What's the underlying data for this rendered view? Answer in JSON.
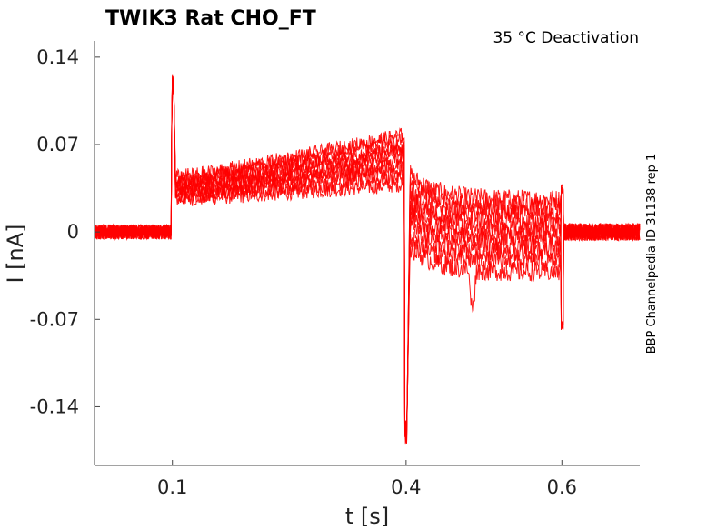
{
  "chart_data": {
    "type": "line",
    "title": "TWIK3  Rat  CHO_FT",
    "annotation": "35 °C  Deactivation",
    "side_label": "BBP Channelpedia ID 31138 rep 1",
    "xlabel": "t [s]",
    "ylabel": "I [nA]",
    "xlim": [
      0,
      0.7
    ],
    "ylim": [
      -0.187,
      0.153
    ],
    "x_ticks": [
      0.1,
      0.4,
      0.6
    ],
    "x_tick_labels": [
      "0.1",
      "0.4",
      "0.6"
    ],
    "y_ticks": [
      0.14,
      0.07,
      0,
      -0.07,
      -0.14
    ],
    "y_tick_labels": [
      "0.14",
      "0.07",
      "0",
      "-0.07",
      "-0.14"
    ],
    "grid": false,
    "series_color": "#ff0000",
    "sweeps": [
      {
        "plateau_start": 0.026,
        "plateau_end": 0.038,
        "tail": 0.026
      },
      {
        "plateau_start": 0.028,
        "plateau_end": 0.044,
        "tail": 0.02
      },
      {
        "plateau_start": 0.03,
        "plateau_end": 0.05,
        "tail": 0.014
      },
      {
        "plateau_start": 0.032,
        "plateau_end": 0.054,
        "tail": 0.008
      },
      {
        "plateau_start": 0.034,
        "plateau_end": 0.058,
        "tail": 0.002
      },
      {
        "plateau_start": 0.036,
        "plateau_end": 0.062,
        "tail": -0.004
      },
      {
        "plateau_start": 0.038,
        "plateau_end": 0.066,
        "tail": -0.01
      },
      {
        "plateau_start": 0.04,
        "plateau_end": 0.07,
        "tail": -0.016
      },
      {
        "plateau_start": 0.042,
        "plateau_end": 0.074,
        "tail": -0.024
      },
      {
        "plateau_start": 0.044,
        "plateau_end": 0.078,
        "tail": -0.032
      }
    ],
    "transients": {
      "on_spike_peak": 0.125,
      "off_spike_min": -0.16,
      "end_spike_min": -0.075,
      "end_spike_max": 0.034
    }
  }
}
